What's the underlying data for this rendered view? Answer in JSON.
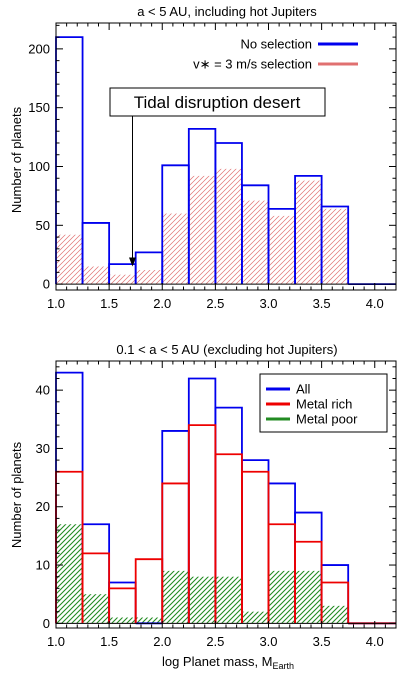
{
  "chart_data": [
    {
      "type": "histogram",
      "title": "a < 5 AU, including hot Jupiters",
      "xlabel": "",
      "ylabel": "Number of planets",
      "xlim": [
        1.0,
        4.2
      ],
      "ylim": [
        -5,
        222
      ],
      "xticks": [
        1.0,
        1.5,
        2.0,
        2.5,
        3.0,
        3.5,
        4.0
      ],
      "xtick_labels": [
        "1.0",
        "1.5",
        "2.0",
        "2.5",
        "3.0",
        "3.5",
        "4.0"
      ],
      "yticks": [
        0,
        50,
        100,
        150,
        200
      ],
      "ytick_labels": [
        "0",
        "50",
        "100",
        "150",
        "200"
      ],
      "bin_edges": [
        1.0,
        1.25,
        1.5,
        1.75,
        2.0,
        2.25,
        2.5,
        2.75,
        3.0,
        3.25,
        3.5,
        3.75,
        4.0,
        4.2
      ],
      "legend_position": "top-right",
      "series": [
        {
          "name": "No selection",
          "style": "outline",
          "color": "#0000ee",
          "values": [
            210,
            52,
            17,
            27,
            101,
            132,
            120,
            84,
            64,
            92,
            66,
            0,
            0
          ]
        },
        {
          "name": "v∗ = 3 m/s selection",
          "style": "hatch",
          "color": "#e07070",
          "values": [
            42,
            15,
            8,
            12,
            60,
            92,
            98,
            71,
            58,
            88,
            64,
            0,
            0
          ]
        }
      ],
      "annotations": [
        {
          "text": "Tidal disruption desert",
          "arrow_x": 1.72,
          "arrow_y_from": 137,
          "arrow_y_to": 15
        }
      ]
    },
    {
      "type": "histogram",
      "title": "0.1 < a < 5 AU (excluding hot Jupiters)",
      "xlabel": "log Planet mass, M",
      "xlabel_sub": "Earth",
      "ylabel": "Number of planets",
      "xlim": [
        1.0,
        4.2
      ],
      "ylim": [
        -0.8,
        45
      ],
      "xticks": [
        1.0,
        1.5,
        2.0,
        2.5,
        3.0,
        3.5,
        4.0
      ],
      "xtick_labels": [
        "1.0",
        "1.5",
        "2.0",
        "2.5",
        "3.0",
        "3.5",
        "4.0"
      ],
      "yticks": [
        0,
        10,
        20,
        30,
        40
      ],
      "ytick_labels": [
        "0",
        "10",
        "20",
        "30",
        "40"
      ],
      "bin_edges": [
        1.0,
        1.25,
        1.5,
        1.75,
        2.0,
        2.25,
        2.5,
        2.75,
        3.0,
        3.25,
        3.5,
        3.75,
        4.0,
        4.2
      ],
      "legend_position": "top-right",
      "series": [
        {
          "name": "All",
          "style": "outline",
          "color": "#0000ee",
          "values": [
            43,
            17,
            7,
            0,
            33,
            42,
            37,
            28,
            24,
            19,
            10,
            0,
            0
          ]
        },
        {
          "name": "Metal rich",
          "style": "outline",
          "color": "#ee0000",
          "values": [
            26,
            12,
            6,
            11,
            24,
            34,
            29,
            26,
            17,
            14,
            7,
            0,
            0
          ]
        },
        {
          "name": "Metal poor",
          "style": "hatch",
          "color": "#228b22",
          "values": [
            17,
            5,
            1,
            1,
            9,
            8,
            8,
            2,
            9,
            9,
            3,
            0,
            0
          ]
        }
      ]
    }
  ]
}
